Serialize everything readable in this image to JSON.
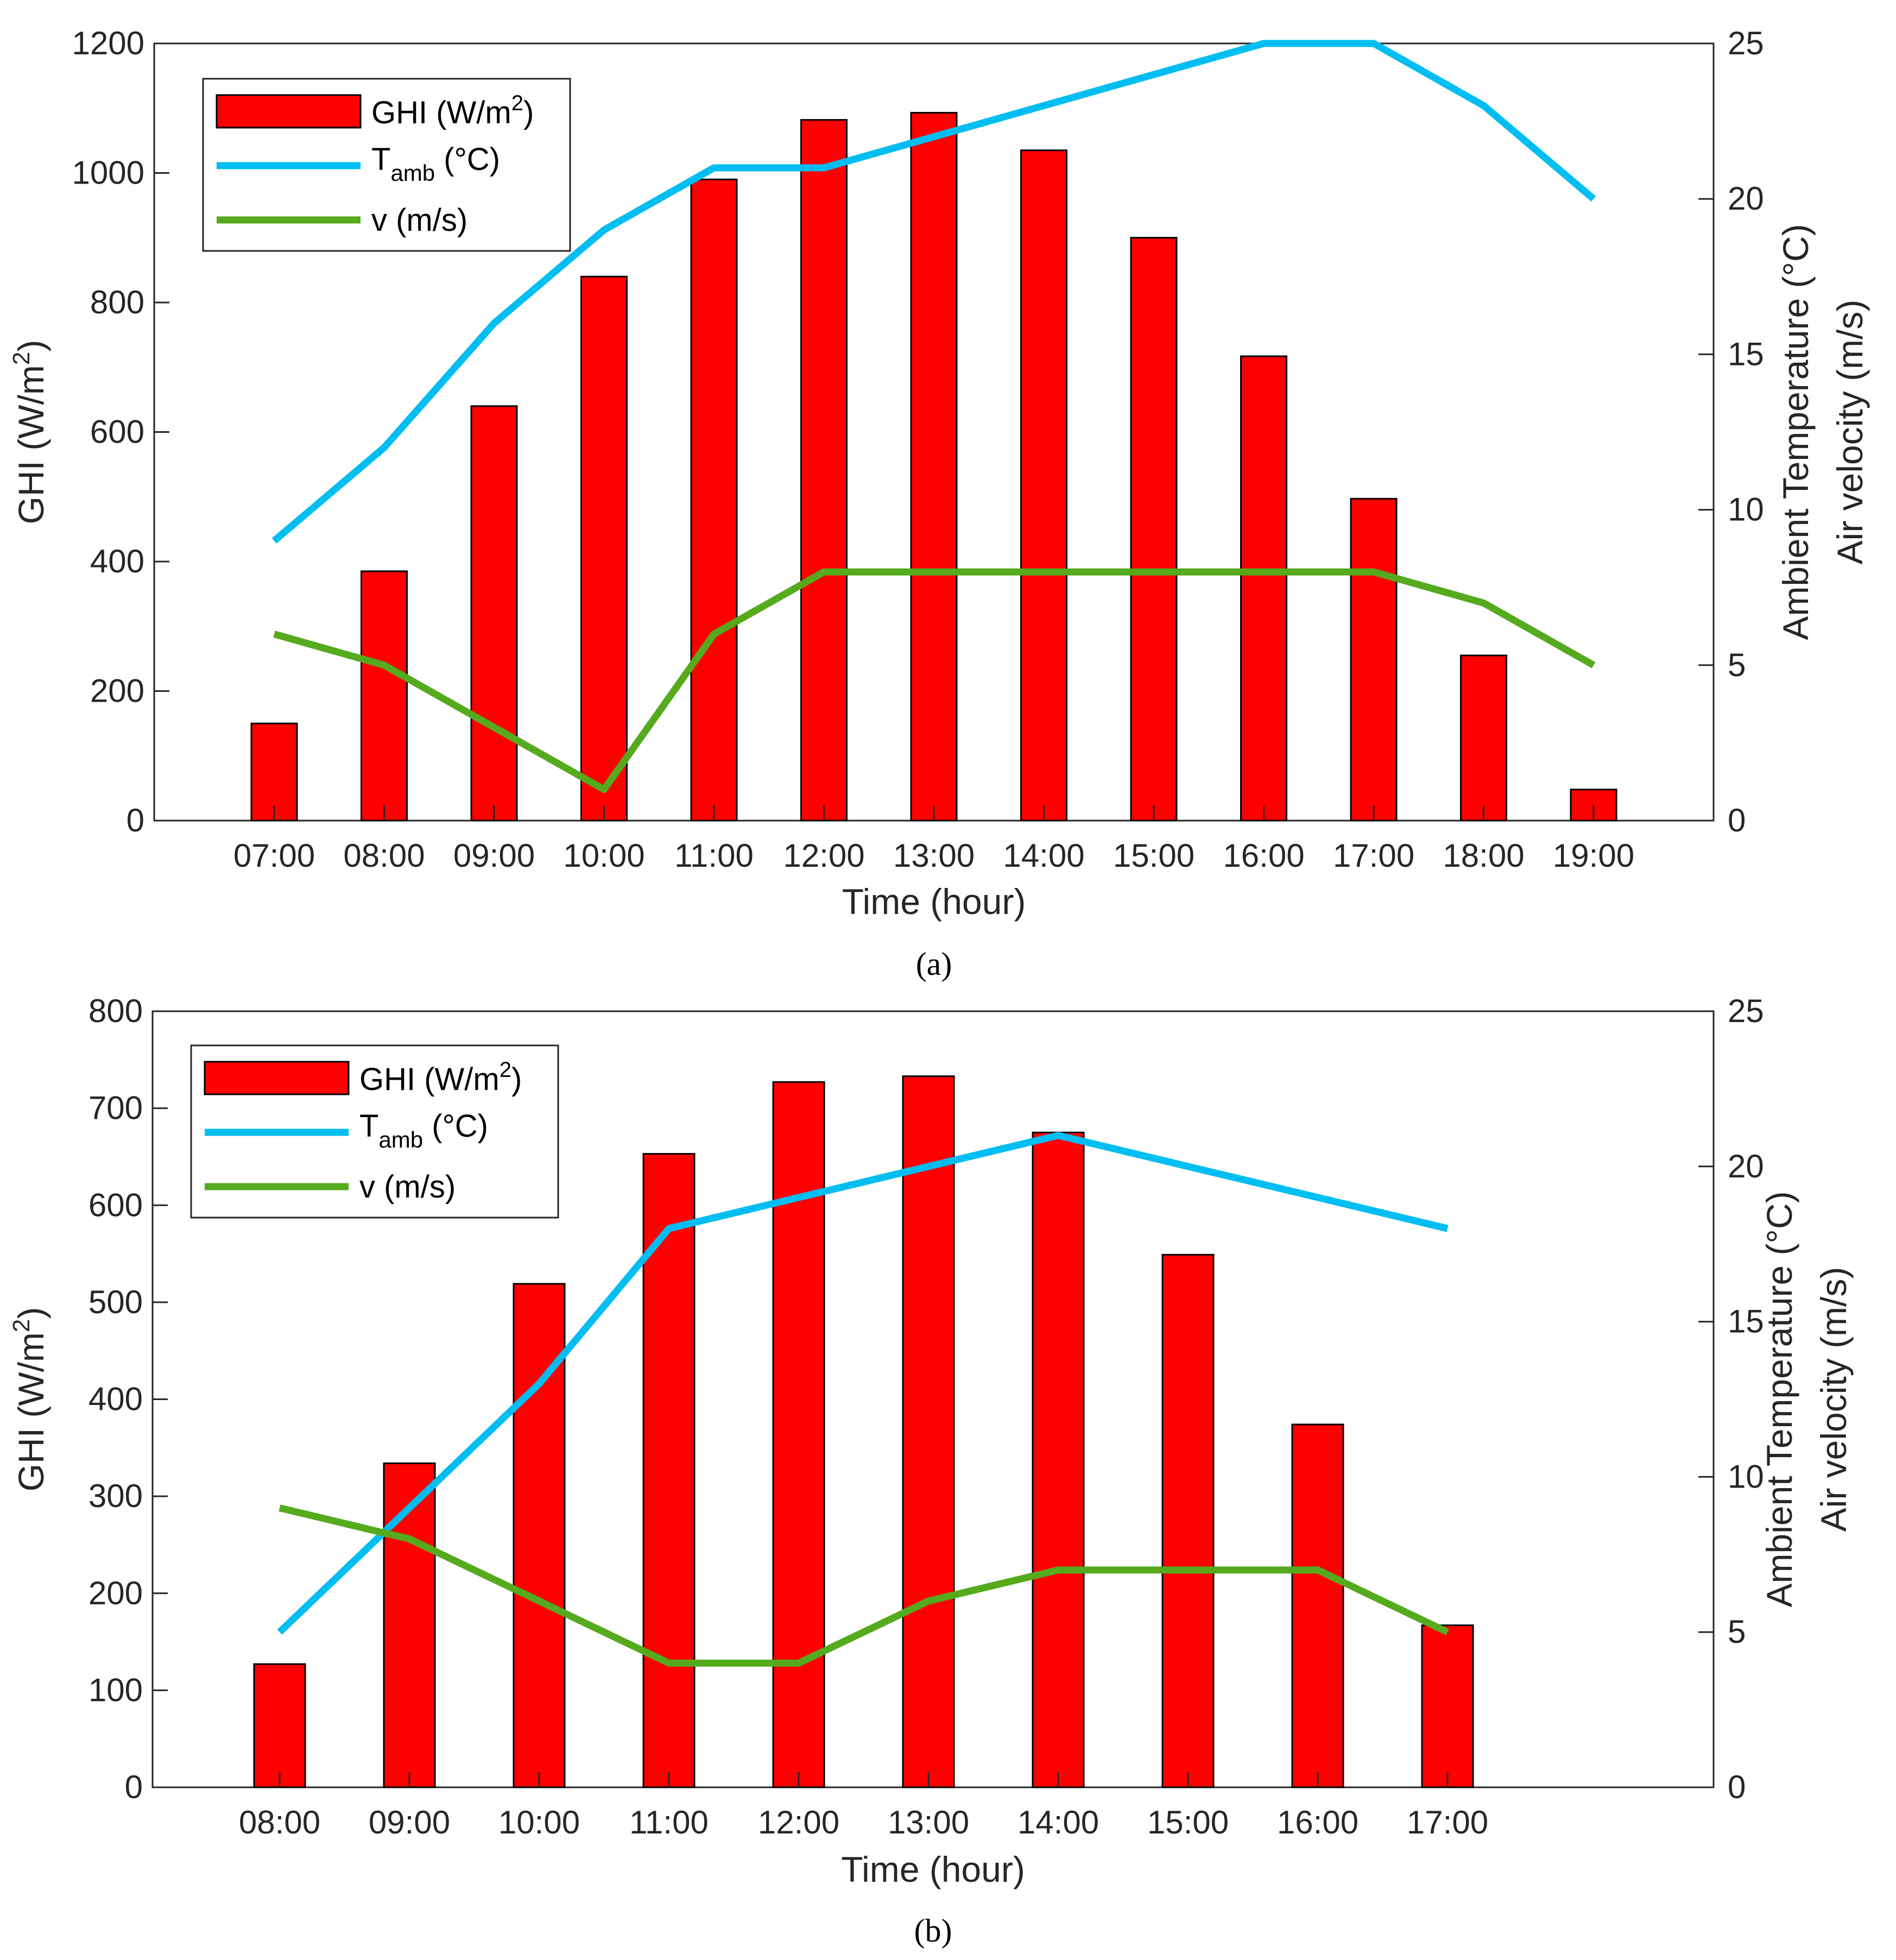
{
  "colors": {
    "ghi_fill": "#ff0000",
    "ghi_edge": "#000000",
    "tamb": "#00bdf2",
    "velocity": "#55aa1e",
    "axis": "#262626"
  },
  "chart_data": [
    {
      "type": "bar",
      "panel_label": "(a)",
      "categories": [
        "07:00",
        "08:00",
        "09:00",
        "10:00",
        "11:00",
        "12:00",
        "13:00",
        "14:00",
        "15:00",
        "16:00",
        "17:00",
        "18:00",
        "19:00"
      ],
      "xlabel": "Time (hour)",
      "ylabel_left": "GHI (W/m2)",
      "ylabel_left_main": "GHI (W/m",
      "ylabel_left_sup": "2",
      "ylabel_left_end": ")",
      "ylabel_right_line1": "Ambient Temperature (°C)",
      "ylabel_right_line2": "Air velocity (m/s)",
      "ylim_left": [
        0,
        1200
      ],
      "yticks_left": [
        "0",
        "200",
        "400",
        "600",
        "800",
        "1000",
        "1200"
      ],
      "ylim_right": [
        0,
        25
      ],
      "yticks_right": [
        "0",
        "5",
        "10",
        "15",
        "20",
        "25"
      ],
      "legend_position": "top-left",
      "series": [
        {
          "name": "GHI (W/m2)",
          "kind": "bar",
          "axis": "left",
          "values": [
            150,
            385,
            640,
            840,
            990,
            1082,
            1093,
            1035,
            900,
            717,
            497,
            255,
            48
          ]
        },
        {
          "name": "Tamb (°C)",
          "kind": "line",
          "axis": "right",
          "values": [
            9,
            12,
            16,
            19,
            21,
            21,
            22,
            23,
            24,
            25,
            25,
            23,
            20
          ]
        },
        {
          "name": "v (m/s)",
          "kind": "line",
          "axis": "right",
          "values": [
            6,
            5,
            3,
            1,
            6,
            8,
            8,
            8,
            8,
            8,
            8,
            7,
            5
          ]
        }
      ],
      "legend": {
        "ghi_main": "GHI (W/m",
        "ghi_sup": "2",
        "ghi_end": ")",
        "tamb_main": "T",
        "tamb_sub": "amb",
        "tamb_end": " (°C)",
        "v": "v (m/s)"
      }
    },
    {
      "type": "bar",
      "panel_label": "(b)",
      "categories": [
        "08:00",
        "09:00",
        "10:00",
        "11:00",
        "12:00",
        "13:00",
        "14:00",
        "15:00",
        "16:00",
        "17:00"
      ],
      "xlabel": "Time (hour)",
      "ylabel_left": "GHI (W/m2)",
      "ylabel_left_main": "GHI (W/m",
      "ylabel_left_sup": "2",
      "ylabel_left_end": ")",
      "ylabel_right_line1": "Ambient Temperature (°C)",
      "ylabel_right_line2": "Air velocity (m/s)",
      "ylim_left": [
        0,
        800
      ],
      "yticks_left": [
        "0",
        "100",
        "200",
        "300",
        "400",
        "500",
        "600",
        "700",
        "800"
      ],
      "ylim_right": [
        0,
        25
      ],
      "yticks_right": [
        "0",
        "5",
        "10",
        "15",
        "20",
        "25"
      ],
      "legend_position": "top-left",
      "series": [
        {
          "name": "GHI (W/m2)",
          "kind": "bar",
          "axis": "left",
          "values": [
            127,
            334,
            519,
            653,
            727,
            733,
            675,
            549,
            374,
            167
          ]
        },
        {
          "name": "Tamb (°C)",
          "kind": "line",
          "axis": "right",
          "values": [
            5,
            9,
            13,
            18,
            19,
            20,
            21,
            20,
            19,
            18
          ]
        },
        {
          "name": "v (m/s)",
          "kind": "line",
          "axis": "right",
          "values": [
            9,
            8,
            6,
            4,
            4,
            6,
            7,
            7,
            7,
            5
          ]
        }
      ],
      "legend": {
        "ghi_main": "GHI (W/m",
        "ghi_sup": "2",
        "ghi_end": ")",
        "tamb_main": "T",
        "tamb_sub": "amb",
        "tamb_end": " (°C)",
        "v": "v (m/s)"
      }
    }
  ]
}
